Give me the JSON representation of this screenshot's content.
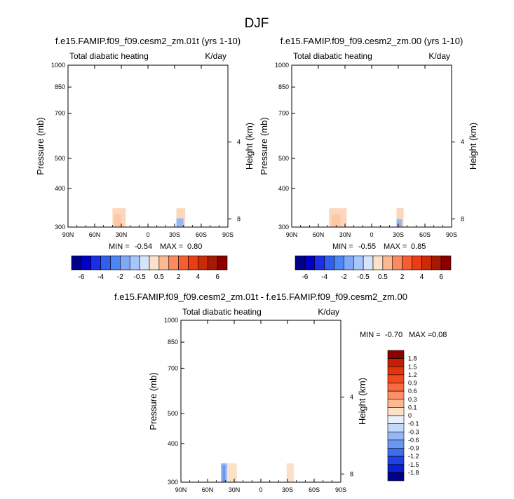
{
  "figure_title": "DJF",
  "min_label": "MIN =",
  "max_label": "MAX =",
  "units": "K/day",
  "chart_data": [
    {
      "type": "heatmap",
      "title": "f.e15.FAMIP.f09_f09.cesm2_zm.01t (yrs 1-10)",
      "subtitle": "Total diabatic heating",
      "units": "K/day",
      "xlabel": "",
      "ylabel": "Pressure (mb)",
      "ylabel_right": "Height (km)",
      "x_ticks": [
        "90N",
        "60N",
        "30N",
        "0",
        "30S",
        "60S",
        "90S"
      ],
      "y_ticks": [
        "300",
        "400",
        "500",
        "700",
        "850",
        "1000"
      ],
      "y_values": [
        300,
        400,
        500,
        700,
        850,
        1000
      ],
      "height_ticks": [
        "8",
        "4"
      ],
      "height_values": [
        8,
        4
      ],
      "ylim": [
        1000,
        300
      ],
      "xlim": [
        90,
        -90
      ],
      "min": "-0.54",
      "max": "0.80",
      "patches": [
        {
          "lat": [
            40,
            25
          ],
          "p": [
            300,
            345
          ],
          "value": 0.3
        },
        {
          "lat": [
            38,
            30
          ],
          "p": [
            300,
            330
          ],
          "value": 0.5
        },
        {
          "lat": [
            -32,
            -42
          ],
          "p": [
            300,
            345
          ],
          "value": 0.3
        },
        {
          "lat": [
            -32,
            -40
          ],
          "p": [
            300,
            320
          ],
          "value": -0.3
        }
      ],
      "colorbar": {
        "labels": [
          "-6",
          "-4",
          "-2",
          "-0.5",
          "0.5",
          "2",
          "4",
          "6"
        ],
        "colors": [
          "#00008b",
          "#0000c8",
          "#1a2ee6",
          "#2f5ff0",
          "#4d85f3",
          "#7fa8f6",
          "#a7c6f9",
          "#d6e5fb",
          "#fde0c8",
          "#fcb892",
          "#fb8a5c",
          "#f75d33",
          "#ea3d14",
          "#c92a07",
          "#a81904",
          "#8a0000"
        ]
      }
    },
    {
      "type": "heatmap",
      "title": "f.e15.FAMIP.f09_f09.cesm2_zm.00 (yrs 1-10)",
      "subtitle": "Total diabatic heating",
      "units": "K/day",
      "xlabel": "",
      "ylabel": "Pressure (mb)",
      "ylabel_right": "Height (km)",
      "x_ticks": [
        "90N",
        "60N",
        "30N",
        "0",
        "30S",
        "60S",
        "90S"
      ],
      "y_ticks": [
        "300",
        "400",
        "500",
        "700",
        "850",
        "1000"
      ],
      "y_values": [
        300,
        400,
        500,
        700,
        850,
        1000
      ],
      "height_ticks": [
        "8",
        "4"
      ],
      "height_values": [
        8,
        4
      ],
      "ylim": [
        1000,
        300
      ],
      "xlim": [
        90,
        -90
      ],
      "min": "-0.55",
      "max": "0.85",
      "patches": [
        {
          "lat": [
            48,
            28
          ],
          "p": [
            300,
            345
          ],
          "value": 0.3
        },
        {
          "lat": [
            45,
            35
          ],
          "p": [
            300,
            330
          ],
          "value": 0.5
        },
        {
          "lat": [
            -28,
            -36
          ],
          "p": [
            300,
            345
          ],
          "value": 0.3
        },
        {
          "lat": [
            -28,
            -34
          ],
          "p": [
            300,
            318
          ],
          "value": -0.3
        }
      ],
      "colorbar": {
        "labels": [
          "-6",
          "-4",
          "-2",
          "-0.5",
          "0.5",
          "2",
          "4",
          "6"
        ],
        "colors": [
          "#00008b",
          "#0000c8",
          "#1a2ee6",
          "#2f5ff0",
          "#4d85f3",
          "#7fa8f6",
          "#a7c6f9",
          "#d6e5fb",
          "#fde0c8",
          "#fcb892",
          "#fb8a5c",
          "#f75d33",
          "#ea3d14",
          "#c92a07",
          "#a81904",
          "#8a0000"
        ]
      }
    },
    {
      "type": "heatmap",
      "title": "f.e15.FAMIP.f09_f09.cesm2_zm.01t - f.e15.FAMIP.f09_f09.cesm2_zm.00",
      "subtitle": "Total diabatic heating",
      "units": "K/day",
      "xlabel": "",
      "ylabel": "Pressure (mb)",
      "ylabel_right": "Height (km)",
      "x_ticks": [
        "90N",
        "60N",
        "30N",
        "0",
        "30S",
        "60S",
        "90S"
      ],
      "y_ticks": [
        "300",
        "400",
        "500",
        "700",
        "850",
        "1000"
      ],
      "y_values": [
        300,
        400,
        500,
        700,
        850,
        1000
      ],
      "height_ticks": [
        "8",
        "4"
      ],
      "height_values": [
        8,
        4
      ],
      "ylim": [
        1000,
        300
      ],
      "xlim": [
        90,
        -90
      ],
      "min": "-0.70",
      "max": "0.08",
      "patches": [
        {
          "lat": [
            45,
            38
          ],
          "p": [
            300,
            345
          ],
          "value": -0.3
        },
        {
          "lat": [
            43,
            40
          ],
          "p": [
            300,
            340
          ],
          "value": -0.6
        },
        {
          "lat": [
            38,
            27
          ],
          "p": [
            300,
            345
          ],
          "value": 0.1
        },
        {
          "lat": [
            -29,
            -37
          ],
          "p": [
            300,
            345
          ],
          "value": 0.1
        }
      ],
      "colorbar": {
        "labels": [
          "1.8",
          "1.5",
          "1.2",
          "0.9",
          "0.6",
          "0.3",
          "0.1",
          "0",
          "-0.1",
          "-0.3",
          "-0.6",
          "-0.9",
          "-1.2",
          "-1.5",
          "-1.8"
        ],
        "colors": [
          "#8a0000",
          "#c41f03",
          "#e2350c",
          "#f24a1f",
          "#f86a3f",
          "#fb9068",
          "#fcb892",
          "#fde0c8",
          "#e8f0fc",
          "#c4d8fa",
          "#96b7f6",
          "#6a96f2",
          "#3e6dee",
          "#1f43e3",
          "#0a1fcf",
          "#00008b"
        ]
      }
    }
  ]
}
